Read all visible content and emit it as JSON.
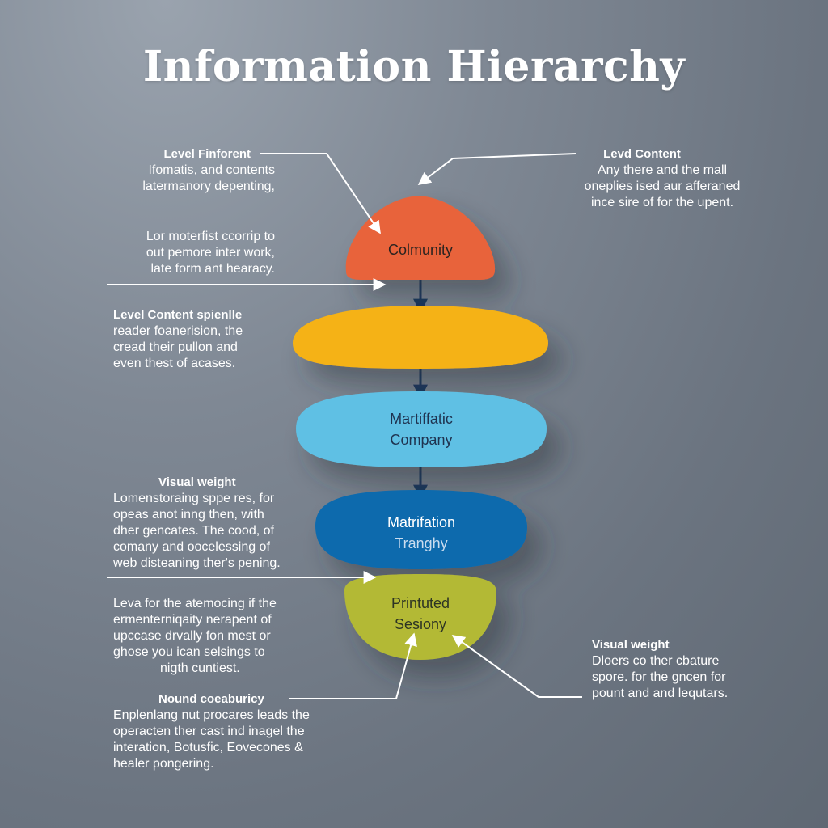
{
  "title": "Information Hierarchy",
  "layers": [
    {
      "lines": [
        "Colmunity"
      ],
      "color": "#e8633a"
    },
    {
      "lines": [],
      "color": "#f5b212"
    },
    {
      "lines": [
        "Martiffatic",
        "Company"
      ],
      "color": "#5ec0e4"
    },
    {
      "lines": [
        "Matrifation",
        "Tranghy"
      ],
      "color": "#0f6aad"
    },
    {
      "lines": [
        "Printuted",
        "Sesiony"
      ],
      "color": "#b3b935"
    }
  ],
  "annotations": {
    "left_1": {
      "head": "Level Finforent",
      "lines": [
        "Ifomatis, and contents",
        "latermanory depenting,"
      ]
    },
    "left_2": {
      "head": "",
      "lines": [
        "Lor moterfist ccorrip to",
        "out pemore inter work,",
        "late form ant hearacy."
      ]
    },
    "left_3": {
      "head": "Level Content spienlle",
      "lines": [
        "reader foanerision, the",
        "cread their pullon  and",
        "even thest of acases."
      ]
    },
    "left_4": {
      "head": "Visual weight",
      "lines": [
        "Lomenstoraing sppe res, for",
        "opeas anot inng then,   with",
        "dher gencates. The cood, of",
        "comany and oocelessing of",
        "web disteaning ther's pening."
      ]
    },
    "left_5": {
      "head": "",
      "lines": [
        "Leva for the atemocing if the",
        "ermenterniqaity nerapent of",
        "upccase drvally fon mest or",
        "ghose you ican  selsings  to",
        "nigth cuntiest."
      ]
    },
    "left_6": {
      "head": "Nound coeaburicy",
      "lines": [
        "Enplenlang nut procares leads the",
        "operacten ther cast ind inagel the",
        "interation, Botusfic, Eovecones &",
        "healer pongering."
      ]
    },
    "right_1": {
      "head": "Levd Content",
      "lines": [
        "Any there and the mall",
        "oneplies ised aur afferaned",
        "ince sire of for the upent."
      ]
    },
    "right_2": {
      "head": "Visual weight",
      "lines": [
        "Dloers co ther cbature",
        "spore. for the gncen for",
        "pount and and lequtars."
      ]
    }
  }
}
